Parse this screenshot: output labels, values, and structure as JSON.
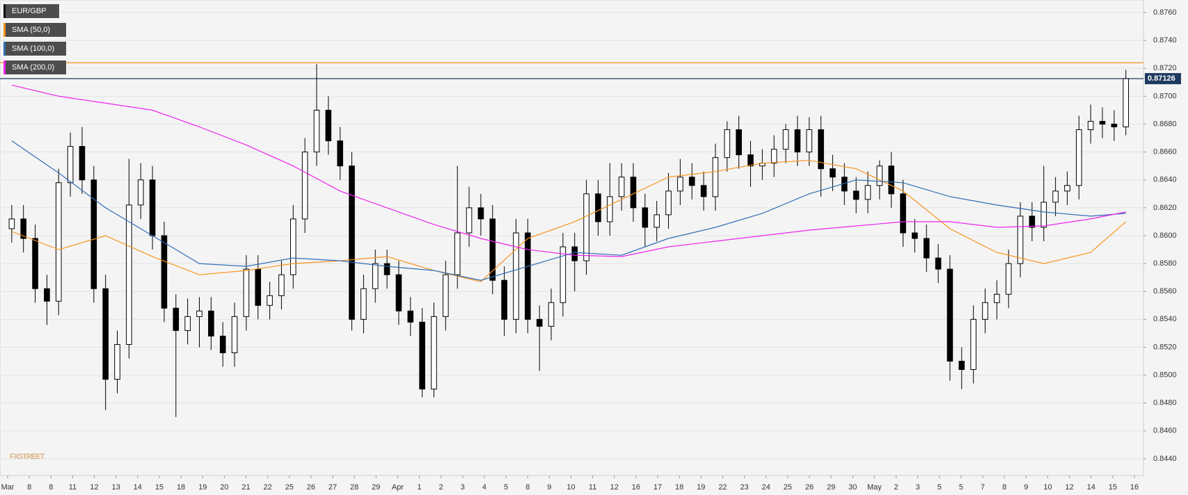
{
  "chart_data": {
    "type": "candlestick",
    "name": "EUR/GBP",
    "color": "#000000",
    "open": [
      0.8605,
      0.8612,
      0.8598,
      0.8562,
      0.8553,
      0.8638,
      0.8664,
      0.864,
      0.8562,
      0.8497,
      0.8522,
      0.8622,
      0.864,
      0.86,
      0.8548,
      0.8532,
      0.8542,
      0.8546,
      0.8528,
      0.8516,
      0.8542,
      0.8576,
      0.855,
      0.8557,
      0.8572,
      0.8612,
      0.866,
      0.869,
      0.8668,
      0.865,
      0.854,
      0.8562,
      0.858,
      0.8572,
      0.8546,
      0.8538,
      0.849,
      0.8542,
      0.8572,
      0.8602,
      0.862,
      0.8612,
      0.8568,
      0.854,
      0.8602,
      0.854,
      0.8535,
      0.8552,
      0.8592,
      0.8582,
      0.863,
      0.861,
      0.8628,
      0.8642,
      0.862,
      0.8606,
      0.8615,
      0.8632,
      0.8642,
      0.8636,
      0.8628,
      0.8656,
      0.8676,
      0.8658,
      0.865,
      0.8652,
      0.8662,
      0.8676,
      0.866,
      0.8676,
      0.8648,
      0.8642,
      0.8632,
      0.8626,
      0.8636,
      0.865,
      0.863,
      0.8602,
      0.8598,
      0.8584,
      0.8576,
      0.851,
      0.8504,
      0.854,
      0.8552,
      0.8558,
      0.858,
      0.8614,
      0.8606,
      0.8624,
      0.8632,
      0.8636,
      0.8676,
      0.8682,
      0.868,
      0.8678
    ],
    "high": [
      0.8622,
      0.8622,
      0.8608,
      0.8572,
      0.8648,
      0.8674,
      0.8678,
      0.865,
      0.8572,
      0.8532,
      0.8655,
      0.8652,
      0.865,
      0.861,
      0.8558,
      0.8555,
      0.8556,
      0.8556,
      0.8538,
      0.8552,
      0.8586,
      0.8586,
      0.8567,
      0.8582,
      0.8622,
      0.867,
      0.8723,
      0.87,
      0.8678,
      0.866,
      0.8572,
      0.859,
      0.859,
      0.8582,
      0.8556,
      0.8548,
      0.8552,
      0.8582,
      0.865,
      0.8635,
      0.863,
      0.8622,
      0.8578,
      0.8612,
      0.8612,
      0.855,
      0.8562,
      0.8602,
      0.8602,
      0.864,
      0.864,
      0.8652,
      0.8652,
      0.8652,
      0.863,
      0.8625,
      0.8645,
      0.8655,
      0.8652,
      0.8646,
      0.8666,
      0.8682,
      0.8686,
      0.8668,
      0.8662,
      0.8672,
      0.868,
      0.8686,
      0.8685,
      0.8686,
      0.8658,
      0.8652,
      0.8642,
      0.8646,
      0.8654,
      0.866,
      0.864,
      0.8612,
      0.8608,
      0.8594,
      0.8586,
      0.852,
      0.855,
      0.8562,
      0.8568,
      0.859,
      0.8624,
      0.8624,
      0.865,
      0.8642,
      0.8646,
      0.8686,
      0.8694,
      0.8692,
      0.869,
      0.8719
    ],
    "low": [
      0.8595,
      0.8588,
      0.8552,
      0.8536,
      0.8543,
      0.8628,
      0.863,
      0.8552,
      0.8475,
      0.8487,
      0.8512,
      0.8612,
      0.859,
      0.8538,
      0.847,
      0.8522,
      0.852,
      0.8518,
      0.8506,
      0.8506,
      0.8532,
      0.854,
      0.854,
      0.8547,
      0.8562,
      0.8602,
      0.865,
      0.8658,
      0.864,
      0.8532,
      0.853,
      0.8552,
      0.8562,
      0.8536,
      0.8528,
      0.8484,
      0.8484,
      0.8532,
      0.8562,
      0.8592,
      0.86,
      0.8558,
      0.8528,
      0.853,
      0.853,
      0.8503,
      0.8525,
      0.8542,
      0.856,
      0.8572,
      0.86,
      0.86,
      0.8618,
      0.861,
      0.8592,
      0.8596,
      0.8605,
      0.8622,
      0.8626,
      0.8618,
      0.8618,
      0.8646,
      0.8648,
      0.8635,
      0.864,
      0.8642,
      0.8652,
      0.865,
      0.865,
      0.8628,
      0.8632,
      0.8622,
      0.8616,
      0.8616,
      0.8626,
      0.862,
      0.8592,
      0.8588,
      0.8574,
      0.8566,
      0.8496,
      0.849,
      0.8494,
      0.853,
      0.854,
      0.8548,
      0.857,
      0.8596,
      0.8596,
      0.8614,
      0.8622,
      0.8626,
      0.8666,
      0.867,
      0.8668,
      0.8672
    ],
    "close": [
      0.8612,
      0.8598,
      0.8562,
      0.8553,
      0.8638,
      0.8664,
      0.864,
      0.8562,
      0.8497,
      0.8522,
      0.8622,
      0.864,
      0.86,
      0.8548,
      0.8532,
      0.8542,
      0.8546,
      0.8528,
      0.8516,
      0.8542,
      0.8576,
      0.855,
      0.8557,
      0.8572,
      0.8612,
      0.866,
      0.869,
      0.8668,
      0.865,
      0.854,
      0.8562,
      0.858,
      0.8572,
      0.8546,
      0.8538,
      0.849,
      0.8542,
      0.8572,
      0.8602,
      0.862,
      0.8612,
      0.8568,
      0.854,
      0.8602,
      0.854,
      0.8535,
      0.8552,
      0.8592,
      0.8582,
      0.863,
      0.861,
      0.8628,
      0.8642,
      0.862,
      0.8606,
      0.8615,
      0.8632,
      0.8642,
      0.8636,
      0.8628,
      0.8656,
      0.8676,
      0.8658,
      0.865,
      0.8652,
      0.8662,
      0.8676,
      0.866,
      0.8676,
      0.8648,
      0.8642,
      0.8632,
      0.8626,
      0.8636,
      0.865,
      0.863,
      0.8602,
      0.8598,
      0.8584,
      0.8576,
      0.851,
      0.8504,
      0.854,
      0.8552,
      0.8558,
      0.858,
      0.8614,
      0.8606,
      0.8624,
      0.8632,
      0.8636,
      0.8676,
      0.8682,
      0.868,
      0.8678,
      0.87126
    ],
    "sma_x": [
      1,
      5,
      9,
      13,
      17,
      21,
      25,
      29,
      33,
      37,
      41,
      45,
      49,
      53,
      57,
      61,
      65,
      69,
      73,
      77,
      81,
      85,
      89,
      93,
      96
    ],
    "series": [
      {
        "name": "SMA (50,0)",
        "color": "#f7931e",
        "values": [
          0.8603,
          0.859,
          0.86,
          0.8585,
          0.8572,
          0.8575,
          0.858,
          0.8582,
          0.8585,
          0.8575,
          0.8567,
          0.8598,
          0.861,
          0.8626,
          0.8642,
          0.8646,
          0.8652,
          0.8654,
          0.8648,
          0.8632,
          0.8605,
          0.8588,
          0.858,
          0.8588,
          0.861
        ]
      },
      {
        "name": "SMA (100,0)",
        "color": "#2f6db5",
        "values": [
          0.8668,
          0.8645,
          0.862,
          0.86,
          0.858,
          0.8578,
          0.8584,
          0.8582,
          0.8578,
          0.8575,
          0.8568,
          0.8578,
          0.8588,
          0.8586,
          0.8598,
          0.8606,
          0.8616,
          0.863,
          0.864,
          0.8638,
          0.8628,
          0.8622,
          0.8617,
          0.8614,
          0.8616
        ]
      },
      {
        "name": "SMA (200,0)",
        "color": "#ee22ee",
        "values": [
          0.8708,
          0.87,
          0.8695,
          0.869,
          0.8678,
          0.8665,
          0.865,
          0.8632,
          0.862,
          0.8608,
          0.8598,
          0.859,
          0.8586,
          0.8585,
          0.8592,
          0.8596,
          0.86,
          0.8604,
          0.8607,
          0.861,
          0.861,
          0.8606,
          0.8607,
          0.8612,
          0.8617
        ]
      }
    ],
    "hlines": [
      {
        "value": 0.8724,
        "color": "#f7931e"
      },
      {
        "value": 0.87126,
        "color": "#1f3a5f"
      }
    ],
    "last_price": 0.87126,
    "xlim": [
      0,
      97.5
    ],
    "ylim": [
      0.8428,
      0.8769
    ],
    "yticks": [
      {
        "value": 0.844,
        "label": "0.8440"
      },
      {
        "value": 0.846,
        "label": "0.8460"
      },
      {
        "value": 0.848,
        "label": "0.8480"
      },
      {
        "value": 0.85,
        "label": "0.8500"
      },
      {
        "value": 0.852,
        "label": "0.8520"
      },
      {
        "value": 0.854,
        "label": "0.8540"
      },
      {
        "value": 0.856,
        "label": "0.8560"
      },
      {
        "value": 0.858,
        "label": "0.8580"
      },
      {
        "value": 0.86,
        "label": "0.8600"
      },
      {
        "value": 0.862,
        "label": "0.8620"
      },
      {
        "value": 0.864,
        "label": "0.8640"
      },
      {
        "value": 0.866,
        "label": "0.8660"
      },
      {
        "value": 0.868,
        "label": "0.8680"
      },
      {
        "value": 0.87,
        "label": "0.8700"
      },
      {
        "value": 0.872,
        "label": "0.8720"
      },
      {
        "value": 0.874,
        "label": "0.8740"
      },
      {
        "value": 0.876,
        "label": "0.8760"
      }
    ],
    "x_labels": [
      "Mar",
      "8",
      "8",
      "11",
      "12",
      "13",
      "14",
      "15",
      "18",
      "19",
      "20",
      "21",
      "22",
      "25",
      "26",
      "27",
      "28",
      "29",
      "Apr",
      "1",
      "2",
      "3",
      "4",
      "5",
      "8",
      "9",
      "10",
      "11",
      "12",
      "16",
      "17",
      "18",
      "19",
      "22",
      "23",
      "24",
      "25",
      "26",
      "29",
      "30",
      "May",
      "2",
      "3",
      "5",
      "5",
      "7",
      "8",
      "9",
      "10",
      "12",
      "14",
      "15",
      "16"
    ],
    "grid": true,
    "watermark": "FXSTREET"
  }
}
